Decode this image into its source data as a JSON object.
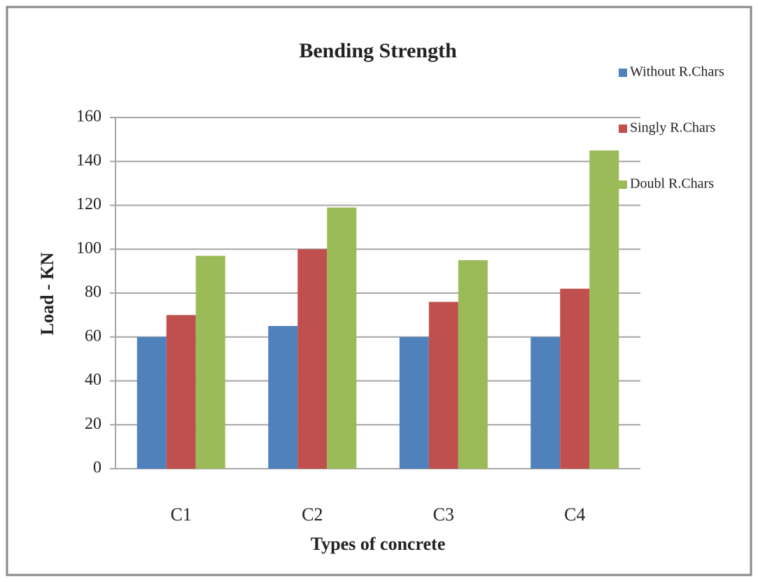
{
  "chart_data": {
    "type": "bar",
    "title": "Bending Strength",
    "x_label": "Types of concrete",
    "y_label": "Load - KN",
    "categories": [
      "C1",
      "C2",
      "C3",
      "C4"
    ],
    "series": [
      {
        "name": "Without R.Chars",
        "color": "#4f81bd",
        "values": [
          60,
          65,
          60,
          60
        ]
      },
      {
        "name": "Singly R.Chars",
        "color": "#c0504d",
        "values": [
          70,
          100,
          76,
          82
        ]
      },
      {
        "name": "Doubl R.Chars",
        "color": "#9bbb59",
        "values": [
          97,
          119,
          95,
          145
        ]
      }
    ],
    "ylim": [
      0,
      160
    ],
    "yticks": [
      0,
      20,
      40,
      60,
      80,
      100,
      120,
      140,
      160
    ],
    "grid": true,
    "legend": "right"
  }
}
